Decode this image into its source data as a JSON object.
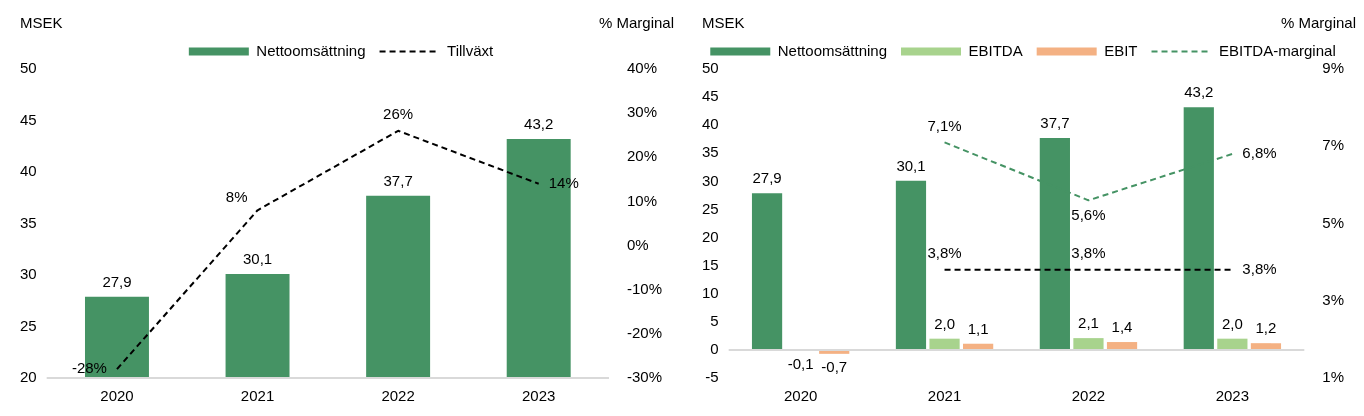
{
  "chart_data": [
    {
      "type": "bar",
      "categories": [
        "2020",
        "2021",
        "2022",
        "2023"
      ],
      "ylabel": "MSEK",
      "y2label": "% Marginal",
      "legend": "top",
      "grid": false,
      "ylim": [
        20,
        50
      ],
      "yticks": [
        20,
        25,
        30,
        35,
        40,
        45,
        50
      ],
      "y2lim": [
        -30,
        40
      ],
      "y2ticks": [
        {
          "value": -30,
          "label": "-30%"
        },
        {
          "value": -20,
          "label": "-20%"
        },
        {
          "value": -10,
          "label": "-10%"
        },
        {
          "value": 0,
          "label": "0%"
        },
        {
          "value": 10,
          "label": "10%"
        },
        {
          "value": 20,
          "label": "20%"
        },
        {
          "value": 30,
          "label": "30%"
        },
        {
          "value": 40,
          "label": "40%"
        }
      ],
      "series": [
        {
          "name": "Nettoomsättning",
          "color": "#459364",
          "values": [
            27.9,
            30.1,
            37.7,
            43.2
          ],
          "value_labels": [
            "27,9",
            "30,1",
            "37,7",
            "43,2"
          ]
        },
        {
          "name": "Tillväxt",
          "type": "line",
          "axis": "y2",
          "color": "#000000",
          "line_style": "dashed",
          "marker": "none",
          "values": [
            -28,
            8,
            26,
            14
          ],
          "value_labels": [
            "-28%",
            "8%",
            "26%",
            "14%"
          ]
        }
      ]
    },
    {
      "type": "bar",
      "categories": [
        "2020",
        "2021",
        "2022",
        "2023"
      ],
      "ylabel": "MSEK",
      "y2label": "% Marginal",
      "legend": "top",
      "grid": false,
      "ylim": [
        -5,
        50
      ],
      "yticks": [
        -5,
        0,
        5,
        10,
        15,
        20,
        25,
        30,
        35,
        40,
        45,
        50
      ],
      "y2lim": [
        1,
        9
      ],
      "y2ticks": [
        {
          "value": 1,
          "label": "1%"
        },
        {
          "value": 3,
          "label": "3%"
        },
        {
          "value": 5,
          "label": "5%"
        },
        {
          "value": 7,
          "label": "7%"
        },
        {
          "value": 9,
          "label": "9%"
        }
      ],
      "series": [
        {
          "name": "Nettoomsättning",
          "color": "#459364",
          "values": [
            27.9,
            30.1,
            37.7,
            43.2
          ],
          "value_labels": [
            "27,9",
            "30,1",
            "37,7",
            "43,2"
          ]
        },
        {
          "name": "EBITDA",
          "color": "#a8d38d",
          "values": [
            -0.1,
            2.0,
            2.1,
            2.0
          ],
          "value_labels": [
            "-0,1",
            "2,0",
            "2,1",
            "2,0"
          ]
        },
        {
          "name": "EBIT",
          "color": "#f4b183",
          "values": [
            -0.7,
            1.1,
            1.4,
            1.2
          ],
          "value_labels": [
            "-0,7",
            "1,1",
            "1,4",
            "1,2"
          ]
        },
        {
          "name": "EBITDA-marginal",
          "type": "line",
          "axis": "y2",
          "color": "#459364",
          "line_style": "dashed",
          "marker": "none",
          "values": [
            null,
            7.1,
            5.6,
            6.8
          ],
          "value_labels": [
            null,
            "7,1%",
            "5,6%",
            "6,8%"
          ]
        },
        {
          "type": "line",
          "axis": "y2",
          "color": "#000000",
          "line_style": "dashed",
          "marker": "none",
          "values": [
            null,
            3.8,
            3.8,
            3.8
          ],
          "value_labels": [
            null,
            "3,8%",
            "3,8%",
            "3,8%"
          ]
        }
      ]
    }
  ]
}
